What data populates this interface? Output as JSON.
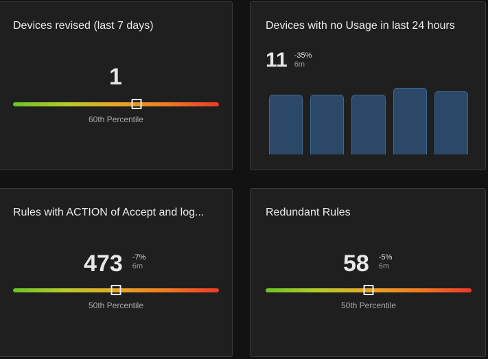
{
  "cards": {
    "devices_revised": {
      "title": "Devices revised (last 7 days)",
      "value": "1",
      "percentile_label": "60th Percentile",
      "percentile": 60
    },
    "devices_no_usage": {
      "title": "Devices with no Usage in last 24 hours",
      "value": "11",
      "change": "-35%",
      "period": "6m"
    },
    "rules_accept_log": {
      "title": "Rules with ACTION of Accept and log...",
      "value": "473",
      "change": "-7%",
      "period": "6m",
      "percentile_label": "50th Percentile",
      "percentile": 50
    },
    "redundant_rules": {
      "title": "Redundant Rules",
      "value": "58",
      "change": "-5%",
      "period": "6m",
      "percentile_label": "50th Percentile",
      "percentile": 50
    }
  },
  "chart_data": {
    "type": "bar",
    "values": [
      17,
      17,
      17,
      19,
      18
    ],
    "ylim": [
      0,
      20
    ],
    "bar_color": "#2b4868",
    "bar_border_color": "#3d6994"
  },
  "colors": {
    "background": "#121212",
    "card": "#1f1f1f",
    "card_border": "#3a3a3a",
    "gradient_start": "#6cc227",
    "gradient_mid": "#e8a726",
    "gradient_end": "#ee3a2a"
  }
}
